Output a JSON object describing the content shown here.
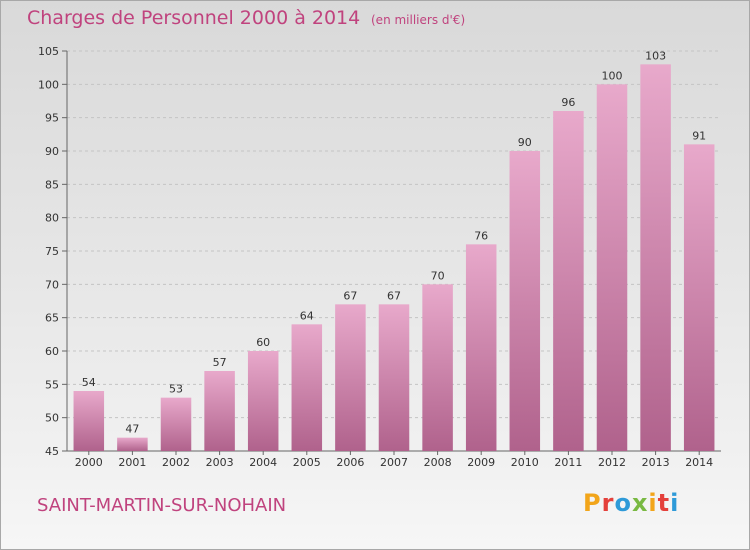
{
  "header": {
    "title": "Charges de Personnel 2000 à 2014",
    "unit": "(en milliers d'€)"
  },
  "footer": {
    "city": "SAINT-MARTIN-SUR-NOHAIN",
    "logo": [
      "P",
      "r",
      "o",
      "x",
      "i",
      "t",
      "i"
    ]
  },
  "colors": {
    "accent": "#c0437e",
    "bar_top": "#e8a9cb",
    "bar_bottom": "#b0628c",
    "logo": [
      "#f2a51a",
      "#e4403b",
      "#2e9ad8",
      "#79b942",
      "#f2a51a",
      "#e4403b",
      "#2e9ad8"
    ]
  },
  "chart_data": {
    "type": "bar",
    "categories": [
      "2000",
      "2001",
      "2002",
      "2003",
      "2004",
      "2005",
      "2006",
      "2007",
      "2008",
      "2009",
      "2010",
      "2011",
      "2012",
      "2013",
      "2014"
    ],
    "values": [
      54,
      47,
      53,
      57,
      60,
      64,
      67,
      67,
      70,
      76,
      90,
      96,
      100,
      103,
      91
    ],
    "ylim": [
      45,
      105
    ],
    "yticks": [
      45,
      50,
      55,
      60,
      65,
      70,
      75,
      80,
      85,
      90,
      95,
      100,
      105
    ],
    "grid": true
  }
}
